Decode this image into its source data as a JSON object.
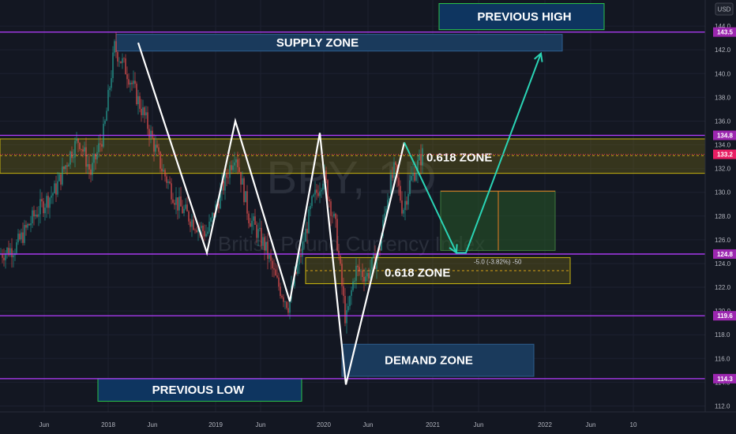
{
  "chart_data": {
    "type": "candlestick",
    "symbol_watermark": "BPY, 1D",
    "watermark_subtitle": "British Pound Currency Index",
    "currency": "USD",
    "x_ticks": [
      "Jun",
      "2018",
      "Jun",
      "2019",
      "Jun",
      "2020",
      "Jun",
      "2021",
      "Jun",
      "2022",
      "Jun",
      "10"
    ],
    "y_ticks": [
      144.0,
      142.0,
      140.0,
      138.0,
      136.0,
      134.0,
      132.0,
      130.0,
      128.0,
      126.0,
      124.0,
      122.0,
      120.0,
      118.0,
      116.0,
      114.0,
      112.0
    ],
    "ylim": [
      111.5,
      146.2
    ],
    "price_tags": [
      {
        "value": 143.5,
        "label": "143.5",
        "color": "#9c27b0"
      },
      {
        "value": 134.8,
        "label": "134.8",
        "color": "#9c27b0"
      },
      {
        "value": 133.2,
        "label": "133.2",
        "color": "#e91e63"
      },
      {
        "value": 124.8,
        "label": "124.8",
        "color": "#9c27b0"
      },
      {
        "value": 119.6,
        "label": "119.6",
        "color": "#9c27b0"
      },
      {
        "value": 114.3,
        "label": "114.3",
        "color": "#9c27b0"
      }
    ],
    "horizontal_levels": [
      143.5,
      134.8,
      124.8,
      119.6,
      114.3
    ],
    "zones": [
      {
        "label": "SUPPLY ZONE",
        "top": 143.3,
        "bottom": 141.9
      },
      {
        "label": "0.618 ZONE",
        "top": 134.5,
        "bottom": 131.6,
        "mid": 133.1
      },
      {
        "label": "0.618 ZONE",
        "top": 124.5,
        "bottom": 122.3,
        "mid": 123.4
      },
      {
        "label": "DEMAND ZONE",
        "top": 117.2,
        "bottom": 114.5
      },
      {
        "label": "PREVIOUS HIGH",
        "top": 145.9,
        "bottom": 143.7
      },
      {
        "label": "PREVIOUS LOW",
        "top": 114.3,
        "bottom": 112.4
      }
    ],
    "measure_label": "-5.0 (-3.82%) -50",
    "measure_box": {
      "top": 130.1,
      "bottom": 125.1
    },
    "zigzag": [
      [
        175,
        142.6
      ],
      [
        262,
        124.9
      ],
      [
        298,
        136.0
      ],
      [
        367,
        120.8
      ],
      [
        405,
        135.0
      ],
      [
        438,
        113.8
      ],
      [
        512,
        134.2
      ]
    ],
    "projection": [
      [
        512,
        134.2
      ],
      [
        578,
        124.9
      ],
      [
        590,
        124.9
      ],
      [
        685,
        141.7
      ]
    ],
    "price_path": [
      [
        0,
        124.8
      ],
      [
        20,
        125.4
      ],
      [
        45,
        128.2
      ],
      [
        70,
        130.2
      ],
      [
        90,
        133.4
      ],
      [
        100,
        134.5
      ],
      [
        115,
        131.6
      ],
      [
        132,
        135.2
      ],
      [
        145,
        142.2
      ],
      [
        162,
        140.0
      ],
      [
        185,
        136.0
      ],
      [
        205,
        132.0
      ],
      [
        225,
        129.0
      ],
      [
        245,
        127.5
      ],
      [
        262,
        126.5
      ],
      [
        280,
        130.0
      ],
      [
        298,
        133.5
      ],
      [
        315,
        128.0
      ],
      [
        335,
        125.5
      ],
      [
        350,
        122.5
      ],
      [
        365,
        120.5
      ],
      [
        380,
        124.5
      ],
      [
        395,
        129.0
      ],
      [
        410,
        131.5
      ],
      [
        425,
        127.0
      ],
      [
        438,
        119.0
      ],
      [
        450,
        123.5
      ],
      [
        465,
        123.0
      ],
      [
        480,
        125.0
      ],
      [
        490,
        129.5
      ],
      [
        500,
        132.0
      ],
      [
        510,
        128.5
      ],
      [
        520,
        131.0
      ],
      [
        535,
        133.2
      ]
    ]
  }
}
